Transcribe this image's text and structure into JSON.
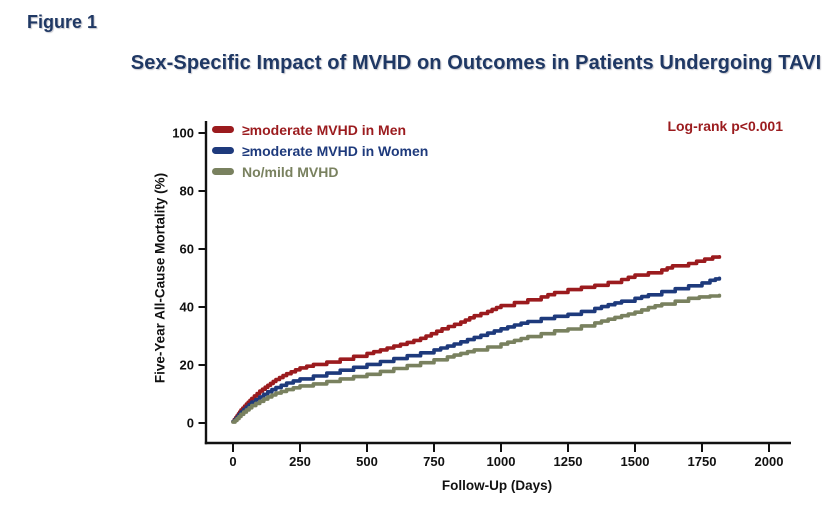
{
  "figure_label": "Figure 1",
  "title": "Sex-Specific Impact of MVHD on Outcomes in Patients Undergoing TAVI",
  "annotation": "Log-rank p<0.001",
  "colors": {
    "title_navy": "#1f3864",
    "annotation_red": "#9b1b1e",
    "axis_black": "#111111"
  },
  "chart_data": {
    "type": "line",
    "subtype": "kaplan-meier-step",
    "title": "Sex-Specific Impact of MVHD on Outcomes in Patients Undergoing TAVI",
    "xlabel": "Follow-Up (Days)",
    "ylabel": "Five-Year All-Cause Mortality (%)",
    "xlim": [
      0,
      2100
    ],
    "ylim": [
      0,
      100
    ],
    "x_ticks": [
      0,
      250,
      500,
      750,
      1000,
      1250,
      1500,
      1750,
      2000
    ],
    "y_ticks": [
      0,
      20,
      40,
      60,
      80,
      100
    ],
    "grid": false,
    "legend_position": "inside-top-left",
    "stat_annotation": "Log-rank p<0.001",
    "series": [
      {
        "name": "≥moderate MVHD in Men",
        "color": "#9b1b1e",
        "points": [
          [
            0,
            0.5
          ],
          [
            15,
            2.5
          ],
          [
            30,
            4.5
          ],
          [
            50,
            6.5
          ],
          [
            70,
            8.5
          ],
          [
            100,
            11
          ],
          [
            130,
            13
          ],
          [
            160,
            15
          ],
          [
            200,
            17
          ],
          [
            250,
            19
          ],
          [
            300,
            20.2
          ],
          [
            350,
            21
          ],
          [
            400,
            22
          ],
          [
            450,
            23
          ],
          [
            500,
            24
          ],
          [
            550,
            25.2
          ],
          [
            600,
            26.5
          ],
          [
            650,
            27.8
          ],
          [
            700,
            29.2
          ],
          [
            740,
            30.8
          ],
          [
            780,
            32.5
          ],
          [
            850,
            34.8
          ],
          [
            900,
            37
          ],
          [
            950,
            38.5
          ],
          [
            1000,
            40.5
          ],
          [
            1050,
            41.5
          ],
          [
            1100,
            42.5
          ],
          [
            1150,
            43.5
          ],
          [
            1200,
            45
          ],
          [
            1250,
            46
          ],
          [
            1300,
            46.8
          ],
          [
            1350,
            47.5
          ],
          [
            1400,
            48.5
          ],
          [
            1450,
            49.5
          ],
          [
            1500,
            51
          ],
          [
            1550,
            51.8
          ],
          [
            1600,
            52.8
          ],
          [
            1640,
            54.2
          ],
          [
            1700,
            55
          ],
          [
            1730,
            55.8
          ],
          [
            1760,
            56.5
          ],
          [
            1790,
            57.2
          ],
          [
            1815,
            57.3
          ]
        ]
      },
      {
        "name": "≥moderate MVHD in Women",
        "color": "#1e3a7c",
        "points": [
          [
            0,
            0.5
          ],
          [
            15,
            2
          ],
          [
            30,
            3.8
          ],
          [
            50,
            5.5
          ],
          [
            70,
            7.2
          ],
          [
            100,
            9
          ],
          [
            130,
            10.8
          ],
          [
            160,
            12.2
          ],
          [
            200,
            13.8
          ],
          [
            250,
            15.2
          ],
          [
            300,
            16.2
          ],
          [
            350,
            17.2
          ],
          [
            400,
            18.2
          ],
          [
            450,
            19.2
          ],
          [
            500,
            20.2
          ],
          [
            550,
            21.2
          ],
          [
            600,
            22.2
          ],
          [
            650,
            23.2
          ],
          [
            700,
            24.2
          ],
          [
            750,
            25.2
          ],
          [
            800,
            26.5
          ],
          [
            850,
            28
          ],
          [
            900,
            29.5
          ],
          [
            950,
            31
          ],
          [
            1000,
            32.5
          ],
          [
            1050,
            33.8
          ],
          [
            1100,
            35
          ],
          [
            1150,
            36
          ],
          [
            1200,
            36.8
          ],
          [
            1250,
            37.5
          ],
          [
            1300,
            38.5
          ],
          [
            1350,
            39.5
          ],
          [
            1400,
            40.8
          ],
          [
            1450,
            42
          ],
          [
            1500,
            43
          ],
          [
            1550,
            44.2
          ],
          [
            1600,
            45.3
          ],
          [
            1650,
            46.3
          ],
          [
            1700,
            47.3
          ],
          [
            1750,
            48.3
          ],
          [
            1780,
            49.2
          ],
          [
            1800,
            49.7
          ],
          [
            1815,
            49.9
          ]
        ]
      },
      {
        "name": "No/mild MVHD",
        "color": "#79815f",
        "points": [
          [
            0,
            0.3
          ],
          [
            15,
            1.5
          ],
          [
            30,
            3
          ],
          [
            50,
            4.5
          ],
          [
            70,
            6
          ],
          [
            100,
            7.5
          ],
          [
            130,
            9
          ],
          [
            160,
            10.3
          ],
          [
            200,
            11.5
          ],
          [
            250,
            12.8
          ],
          [
            300,
            13.5
          ],
          [
            350,
            14.3
          ],
          [
            400,
            15.2
          ],
          [
            450,
            16
          ],
          [
            500,
            16.8
          ],
          [
            550,
            17.8
          ],
          [
            600,
            18.8
          ],
          [
            650,
            19.8
          ],
          [
            700,
            20.8
          ],
          [
            750,
            21.8
          ],
          [
            800,
            22.8
          ],
          [
            850,
            24
          ],
          [
            900,
            25.2
          ],
          [
            950,
            26.2
          ],
          [
            1000,
            27.2
          ],
          [
            1050,
            28.5
          ],
          [
            1100,
            29.8
          ],
          [
            1150,
            30.8
          ],
          [
            1200,
            31.8
          ],
          [
            1250,
            32.4
          ],
          [
            1300,
            33.5
          ],
          [
            1350,
            34.5
          ],
          [
            1400,
            35.8
          ],
          [
            1450,
            37
          ],
          [
            1500,
            38.2
          ],
          [
            1550,
            39.8
          ],
          [
            1600,
            41
          ],
          [
            1650,
            42
          ],
          [
            1700,
            43
          ],
          [
            1740,
            43.5
          ],
          [
            1780,
            43.8
          ],
          [
            1815,
            44
          ]
        ]
      }
    ]
  }
}
